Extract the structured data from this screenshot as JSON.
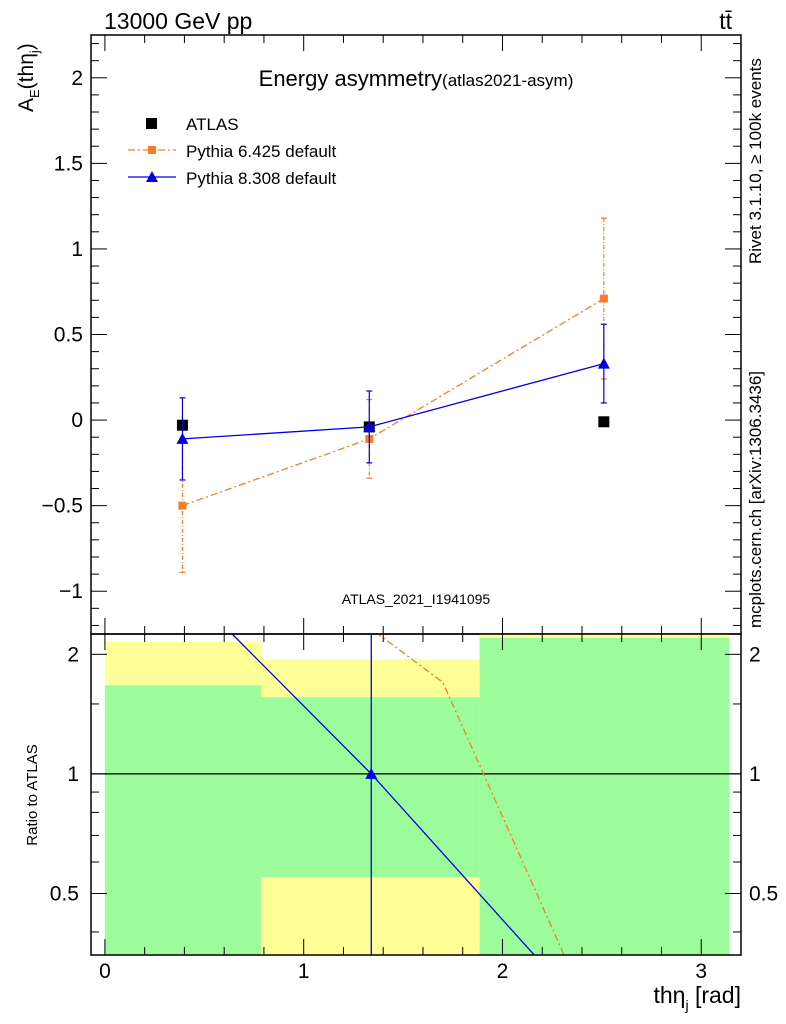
{
  "header": {
    "left": "13000 GeV pp",
    "right": "tt̄",
    "side_top": "Rivet 3.1.10, ≥ 100k events",
    "side_bottom": "mcplots.cern.ch [arXiv:1306.3436]"
  },
  "colors": {
    "atlas": "#000000",
    "pythia6": "#f57d2c",
    "pythia8": "#0000e0",
    "band_green": "#9cfc9c",
    "band_yellow": "#ffff98",
    "watermark": "#9a9a9a"
  },
  "chart_data": [
    {
      "type": "scatter",
      "title": "Energy asymmetry",
      "title_suffix": "(atlas2021-asym)",
      "ylabel": "A",
      "ylabel_sub": "E",
      "ylabel_arg": "(thη",
      "ylabel_arg_sub": "j",
      "ylabel_close": ")",
      "watermark": "ATLAS_2021_I1941095",
      "xlim": [
        -0.07,
        3.2
      ],
      "ylim": [
        -1.25,
        2.25
      ],
      "yticks": [
        -1,
        -0.5,
        0,
        0.5,
        1,
        1.5,
        2
      ],
      "ytick_labels": [
        "−1",
        "−0.5",
        "0",
        "0.5",
        "1",
        "1.5",
        "2"
      ],
      "legend_position": "top-left",
      "series": [
        {
          "name": "ATLAS",
          "marker": "square",
          "x": [
            0.39,
            1.33,
            2.51
          ],
          "y": [
            -0.03,
            -0.04,
            -0.01
          ],
          "yerr": [
            0,
            0,
            0
          ]
        },
        {
          "name": "Pythia 6.425 default",
          "marker": "square",
          "line": "dashdot",
          "x": [
            0.39,
            1.33,
            2.51
          ],
          "y": [
            -0.5,
            -0.11,
            0.71
          ],
          "yerr": [
            0.39,
            0.23,
            0.47
          ]
        },
        {
          "name": "Pythia 8.308 default",
          "marker": "triangle",
          "line": "solid",
          "x": [
            0.39,
            1.33,
            2.51
          ],
          "y": [
            -0.11,
            -0.04,
            0.33
          ],
          "yerr": [
            0.24,
            0.21,
            0.23
          ]
        }
      ]
    },
    {
      "type": "line",
      "ylabel": "Ratio to ATLAS",
      "xlabel": "thη",
      "xlabel_sub": "j",
      "xlabel_unit": " [rad]",
      "xlim": [
        -0.07,
        3.2
      ],
      "xticks": [
        0,
        1,
        2,
        3
      ],
      "xtick_labels": [
        "0",
        "1",
        "2",
        "3"
      ],
      "ylim": [
        0.35,
        2.25
      ],
      "yticks": [
        0.5,
        1,
        2
      ],
      "ytick_labels": [
        "0.5",
        "1",
        "2"
      ],
      "reference": 1,
      "bins": [
        [
          0,
          0.785
        ],
        [
          0.785,
          1.885
        ],
        [
          1.885,
          3.14
        ]
      ],
      "band_inner": [
        [
          0.35,
          1.67
        ],
        [
          0.35,
          1.56
        ],
        [
          0.35,
          2.2
        ]
      ],
      "band_outer": [
        [
          0.35,
          2.15
        ],
        [
          0.35,
          1.94
        ],
        [
          0.35,
          2.25
        ]
      ],
      "band_outer_gap": [
        null,
        [
          0.35,
          0.55
        ],
        null
      ],
      "series": [
        {
          "name": "Pythia 6.425 default",
          "line": "dashdot",
          "x": [
            1.3,
            1.7,
            2.31
          ],
          "y": [
            2.4,
            1.7,
            0.35
          ]
        },
        {
          "name": "Pythia 8.308 default",
          "line": "solid",
          "x": [
            0.64,
            1.34,
            2.16
          ],
          "y": [
            2.25,
            1.0,
            0.35
          ],
          "point": {
            "x": 1.34,
            "y": 1.0
          }
        }
      ]
    }
  ]
}
